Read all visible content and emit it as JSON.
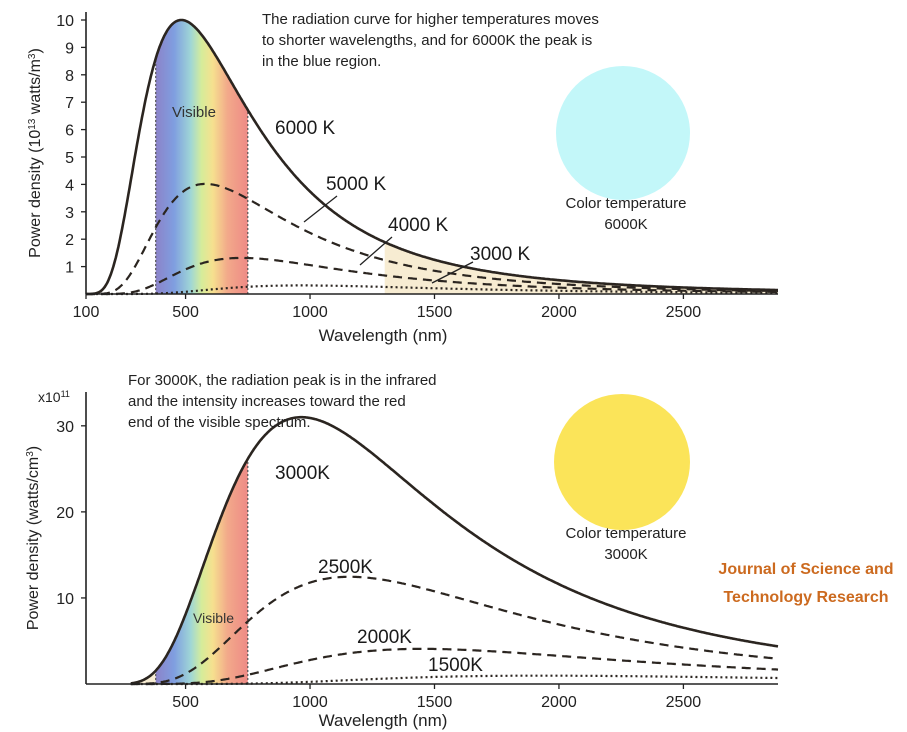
{
  "watermark": {
    "line1": "Journal of Science and",
    "line2": "Technology Research"
  },
  "colors": {
    "sky_circle": "#c3f7f9",
    "sun_circle": "#fbe459",
    "journal_text": "#cc6a1f",
    "curve": "#2b2520",
    "shade_tail": "#f7ecd2"
  },
  "chart_data": [
    {
      "type": "line",
      "title": "",
      "annotation_text": [
        "The radiation curve for higher temperatures moves",
        "to shorter wavelengths, and for 6000K the peak is",
        "in the blue region."
      ],
      "xlabel": "Wavelength (nm)",
      "ylabel": "Power density (10¹³ watts/m³)",
      "x_ticks": [
        100,
        500,
        1000,
        1500,
        2000,
        2500
      ],
      "y_ticks": [
        1,
        2,
        3,
        4,
        5,
        6,
        7,
        8,
        9,
        10
      ],
      "xlim": [
        100,
        2880
      ],
      "ylim": [
        0,
        10
      ],
      "visible_band": {
        "label": "Visible",
        "from": 380,
        "to": 750
      },
      "color_swatch": {
        "label_line1": "Color temperature",
        "label_line2": "6000K",
        "color": "sky-blue"
      },
      "series": [
        {
          "name": "6000 K",
          "style": "solid",
          "temperature": 6000
        },
        {
          "name": "5000 K",
          "style": "dashed",
          "temperature": 5000
        },
        {
          "name": "4000 K",
          "style": "dashed",
          "temperature": 4000
        },
        {
          "name": "3000 K",
          "style": "dotted",
          "temperature": 3000
        }
      ]
    },
    {
      "type": "line",
      "title": "",
      "annotation_text": [
        "For 3000K, the radiation peak is in the infrared",
        "and the intensity increases toward the red",
        "end of the visible spectrum."
      ],
      "xlabel": "Wavelength (nm)",
      "ylabel": "Power density (watts/cm³)",
      "y_multiplier": "x10¹¹",
      "x_ticks": [
        500,
        1000,
        1500,
        2000,
        2500
      ],
      "y_ticks": [
        10,
        20,
        30
      ],
      "xlim": [
        100,
        2880
      ],
      "ylim": [
        0,
        33
      ],
      "visible_band": {
        "label": "Visible",
        "from": 380,
        "to": 750
      },
      "color_swatch": {
        "label_line1": "Color temperature",
        "label_line2": "3000K",
        "color": "yellow"
      },
      "series": [
        {
          "name": "3000K",
          "style": "solid",
          "temperature": 3000
        },
        {
          "name": "2500K",
          "style": "dashed",
          "temperature": 2500
        },
        {
          "name": "2000K",
          "style": "dashed",
          "temperature": 2000
        },
        {
          "name": "1500K",
          "style": "dotted",
          "temperature": 1500
        }
      ]
    }
  ]
}
